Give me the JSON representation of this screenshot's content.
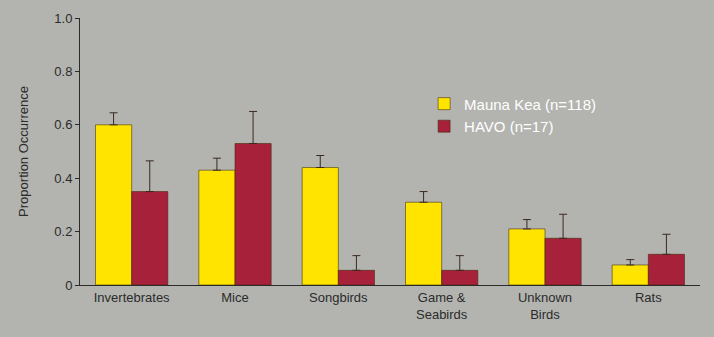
{
  "chart_data": {
    "type": "bar",
    "y_label": "Proportion Occurrence",
    "categories": [
      "Invertebrates",
      "Mice",
      "Songbirds",
      "Game & Seabirds",
      "Unknown Birds",
      "Rats"
    ],
    "series": [
      {
        "name": "Mauna Kea (n=118)",
        "color": "#ffe400",
        "values": [
          0.6,
          0.43,
          0.44,
          0.31,
          0.21,
          0.075
        ],
        "errors": [
          0.045,
          0.045,
          0.045,
          0.04,
          0.035,
          0.02
        ]
      },
      {
        "name": "HAVO (n=17)",
        "color": "#a8213a",
        "values": [
          0.35,
          0.53,
          0.055,
          0.055,
          0.175,
          0.115
        ],
        "errors": [
          0.115,
          0.12,
          0.055,
          0.055,
          0.09,
          0.075
        ]
      }
    ],
    "ylim": [
      0,
      1
    ],
    "yticks": [
      0,
      0.2,
      0.4,
      0.6,
      0.8,
      {
        "value": 1,
        "label": "1.0"
      }
    ],
    "grid": false,
    "legend": "upper right"
  }
}
